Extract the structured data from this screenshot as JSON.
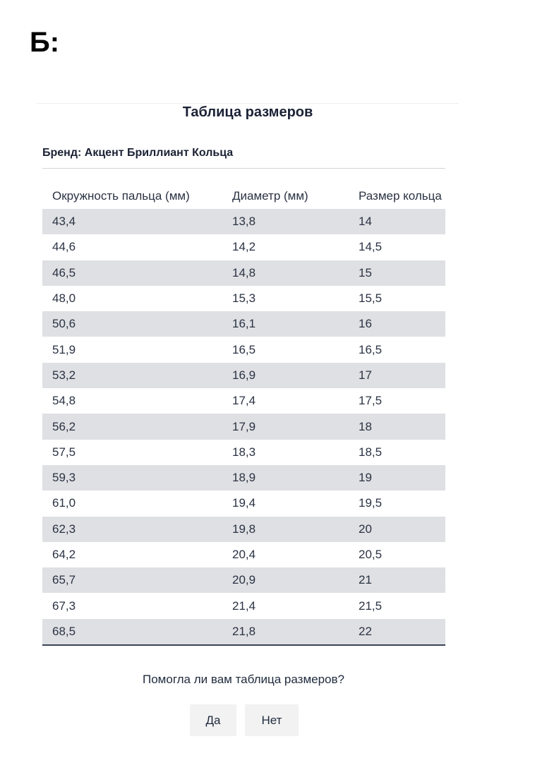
{
  "corner_label": "Б:",
  "title": "Таблица размеров",
  "brand": "Бренд: Акцент Бриллиант Кольца",
  "table": {
    "headers": [
      "Окружность пальца (мм)",
      "Диаметр (мм)",
      "Размер кольца"
    ],
    "rows": [
      [
        "43,4",
        "13,8",
        "14"
      ],
      [
        "44,6",
        "14,2",
        "14,5"
      ],
      [
        "46,5",
        "14,8",
        "15"
      ],
      [
        "48,0",
        "15,3",
        "15,5"
      ],
      [
        "50,6",
        "16,1",
        "16"
      ],
      [
        "51,9",
        "16,5",
        "16,5"
      ],
      [
        "53,2",
        "16,9",
        "17"
      ],
      [
        "54,8",
        "17,4",
        "17,5"
      ],
      [
        "56,2",
        "17,9",
        "18"
      ],
      [
        "57,5",
        "18,3",
        "18,5"
      ],
      [
        "59,3",
        "18,9",
        "19"
      ],
      [
        "61,0",
        "19,4",
        "19,5"
      ],
      [
        "62,3",
        "19,8",
        "20"
      ],
      [
        "64,2",
        "20,4",
        "20,5"
      ],
      [
        "65,7",
        "20,9",
        "21"
      ],
      [
        "67,3",
        "21,4",
        "21,5"
      ],
      [
        "68,5",
        "21,8",
        "22"
      ]
    ]
  },
  "feedback": {
    "question": "Помогла ли вам таблица размеров?",
    "yes_label": "Да",
    "no_label": "Нет"
  },
  "colors": {
    "text": "#1f2a3c",
    "stripe": "#dfe0e3",
    "button_bg": "#f2f2f3",
    "bottom_rule": "#3a4356"
  }
}
